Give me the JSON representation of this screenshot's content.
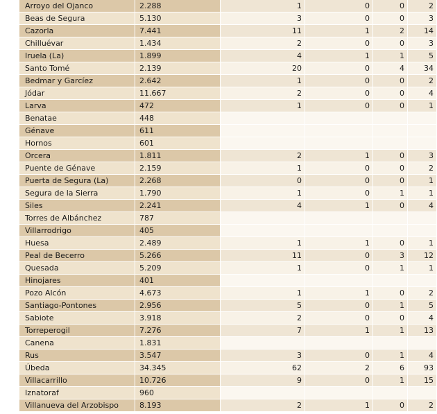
{
  "rows": [
    {
      "name": "Arroyo del Ojanco",
      "pop": "2.288",
      "a": "1",
      "b": "0",
      "c": "0",
      "d": "2"
    },
    {
      "name": "Beas de Segura",
      "pop": "5.130",
      "a": "3",
      "b": "0",
      "c": "0",
      "d": "3"
    },
    {
      "name": "Cazorla",
      "pop": "7.441",
      "a": "11",
      "b": "1",
      "c": "2",
      "d": "14"
    },
    {
      "name": "Chilluévar",
      "pop": "1.434",
      "a": "2",
      "b": "0",
      "c": "0",
      "d": "3"
    },
    {
      "name": "Iruela (La)",
      "pop": "1.899",
      "a": "4",
      "b": "1",
      "c": "1",
      "d": "5"
    },
    {
      "name": "Santo Tomé",
      "pop": "2.139",
      "a": "20",
      "b": "0",
      "c": "4",
      "d": "34"
    },
    {
      "name": "Bedmar y Garcíez",
      "pop": "2.642",
      "a": "1",
      "b": "0",
      "c": "0",
      "d": "2"
    },
    {
      "name": "Jódar",
      "pop": "11.667",
      "a": "2",
      "b": "0",
      "c": "0",
      "d": "4"
    },
    {
      "name": "Larva",
      "pop": "472",
      "a": "1",
      "b": "0",
      "c": "0",
      "d": "1"
    },
    {
      "name": "Benatae",
      "pop": "448",
      "a": "",
      "b": "",
      "c": "",
      "d": ""
    },
    {
      "name": "Génave",
      "pop": "611",
      "a": "",
      "b": "",
      "c": "",
      "d": ""
    },
    {
      "name": "Hornos",
      "pop": "601",
      "a": "",
      "b": "",
      "c": "",
      "d": ""
    },
    {
      "name": "Orcera",
      "pop": "1.811",
      "a": "2",
      "b": "1",
      "c": "0",
      "d": "3"
    },
    {
      "name": "Puente de Génave",
      "pop": "2.159",
      "a": "1",
      "b": "0",
      "c": "0",
      "d": "2"
    },
    {
      "name": "Puerta de Segura (La)",
      "pop": "2.268",
      "a": "0",
      "b": "0",
      "c": "0",
      "d": "1"
    },
    {
      "name": "Segura de la Sierra",
      "pop": "1.790",
      "a": "1",
      "b": "0",
      "c": "1",
      "d": "1"
    },
    {
      "name": "Siles",
      "pop": "2.241",
      "a": "4",
      "b": "1",
      "c": "0",
      "d": "4"
    },
    {
      "name": "Torres de Albánchez",
      "pop": "787",
      "a": "",
      "b": "",
      "c": "",
      "d": ""
    },
    {
      "name": "Villarrodrigo",
      "pop": "405",
      "a": "",
      "b": "",
      "c": "",
      "d": ""
    },
    {
      "name": "Huesa",
      "pop": "2.489",
      "a": "1",
      "b": "1",
      "c": "0",
      "d": "1"
    },
    {
      "name": "Peal de Becerro",
      "pop": "5.266",
      "a": "11",
      "b": "0",
      "c": "3",
      "d": "12"
    },
    {
      "name": "Quesada",
      "pop": "5.209",
      "a": "1",
      "b": "0",
      "c": "1",
      "d": "1"
    },
    {
      "name": "Hinojares",
      "pop": "401",
      "a": "",
      "b": "",
      "c": "",
      "d": ""
    },
    {
      "name": "Pozo Alcón",
      "pop": "4.673",
      "a": "1",
      "b": "1",
      "c": "0",
      "d": "2"
    },
    {
      "name": "Santiago-Pontones",
      "pop": "2.956",
      "a": "5",
      "b": "0",
      "c": "1",
      "d": "5"
    },
    {
      "name": "Sabiote",
      "pop": "3.918",
      "a": "2",
      "b": "0",
      "c": "0",
      "d": "4"
    },
    {
      "name": "Torreperogil",
      "pop": "7.276",
      "a": "7",
      "b": "1",
      "c": "1",
      "d": "13"
    },
    {
      "name": "Canena",
      "pop": "1.831",
      "a": "",
      "b": "",
      "c": "",
      "d": ""
    },
    {
      "name": "Rus",
      "pop": "3.547",
      "a": "3",
      "b": "0",
      "c": "1",
      "d": "4"
    },
    {
      "name": "Úbeda",
      "pop": "34.345",
      "a": "62",
      "b": "2",
      "c": "6",
      "d": "93"
    },
    {
      "name": "Villacarrillo",
      "pop": "10.726",
      "a": "9",
      "b": "0",
      "c": "1",
      "d": "15"
    },
    {
      "name": "Iznatoraf",
      "pop": "960",
      "a": "",
      "b": "",
      "c": "",
      "d": ""
    },
    {
      "name": "Villanueva del Arzobispo",
      "pop": "8.193",
      "a": "2",
      "b": "1",
      "c": "0",
      "d": "2"
    }
  ]
}
